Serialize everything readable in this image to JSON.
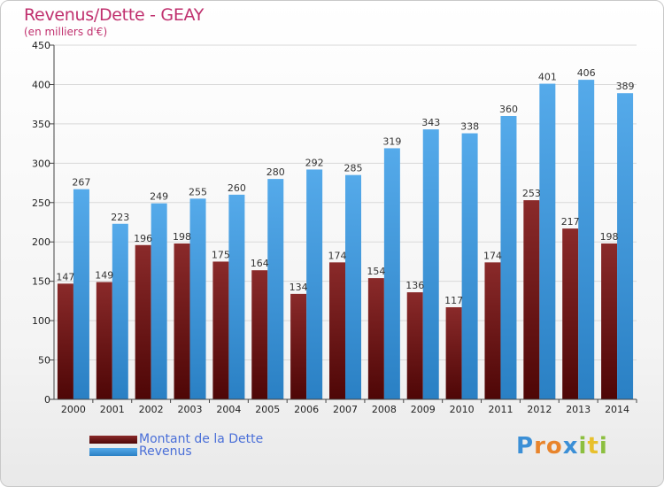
{
  "chart_data": {
    "type": "bar",
    "title": "Revenus/Dette - GEAY",
    "subtitle": "(en milliers d'€)",
    "categories": [
      "2000",
      "2001",
      "2002",
      "2003",
      "2004",
      "2005",
      "2006",
      "2007",
      "2008",
      "2009",
      "2010",
      "2011",
      "2012",
      "2013",
      "2014"
    ],
    "series": [
      {
        "name": "Montant de la Dette",
        "color": "#6b1515",
        "values": [
          147,
          149,
          196,
          198,
          175,
          164,
          134,
          174,
          154,
          136,
          117,
          174,
          253,
          217,
          198
        ]
      },
      {
        "name": "Revenus",
        "color": "#3d96dc",
        "values": [
          267,
          223,
          249,
          255,
          260,
          280,
          292,
          285,
          319,
          343,
          338,
          360,
          401,
          406,
          389
        ]
      }
    ],
    "ylim": [
      0,
      450
    ],
    "yticks": [
      0,
      50,
      100,
      150,
      200,
      250,
      300,
      350,
      400,
      450
    ],
    "grid": true,
    "legend": "bottom-left"
  },
  "legend": {
    "debt_label": "Montant de la Dette",
    "revenue_label": "Revenus"
  },
  "logo": {
    "letters": [
      "P",
      "r",
      "o",
      "x",
      "i",
      "t",
      "i"
    ],
    "colors": [
      "#3b8fd6",
      "#e8842c",
      "#e8842c",
      "#3b8fd6",
      "#8cbf3f",
      "#e8c02c",
      "#8cbf3f"
    ]
  }
}
